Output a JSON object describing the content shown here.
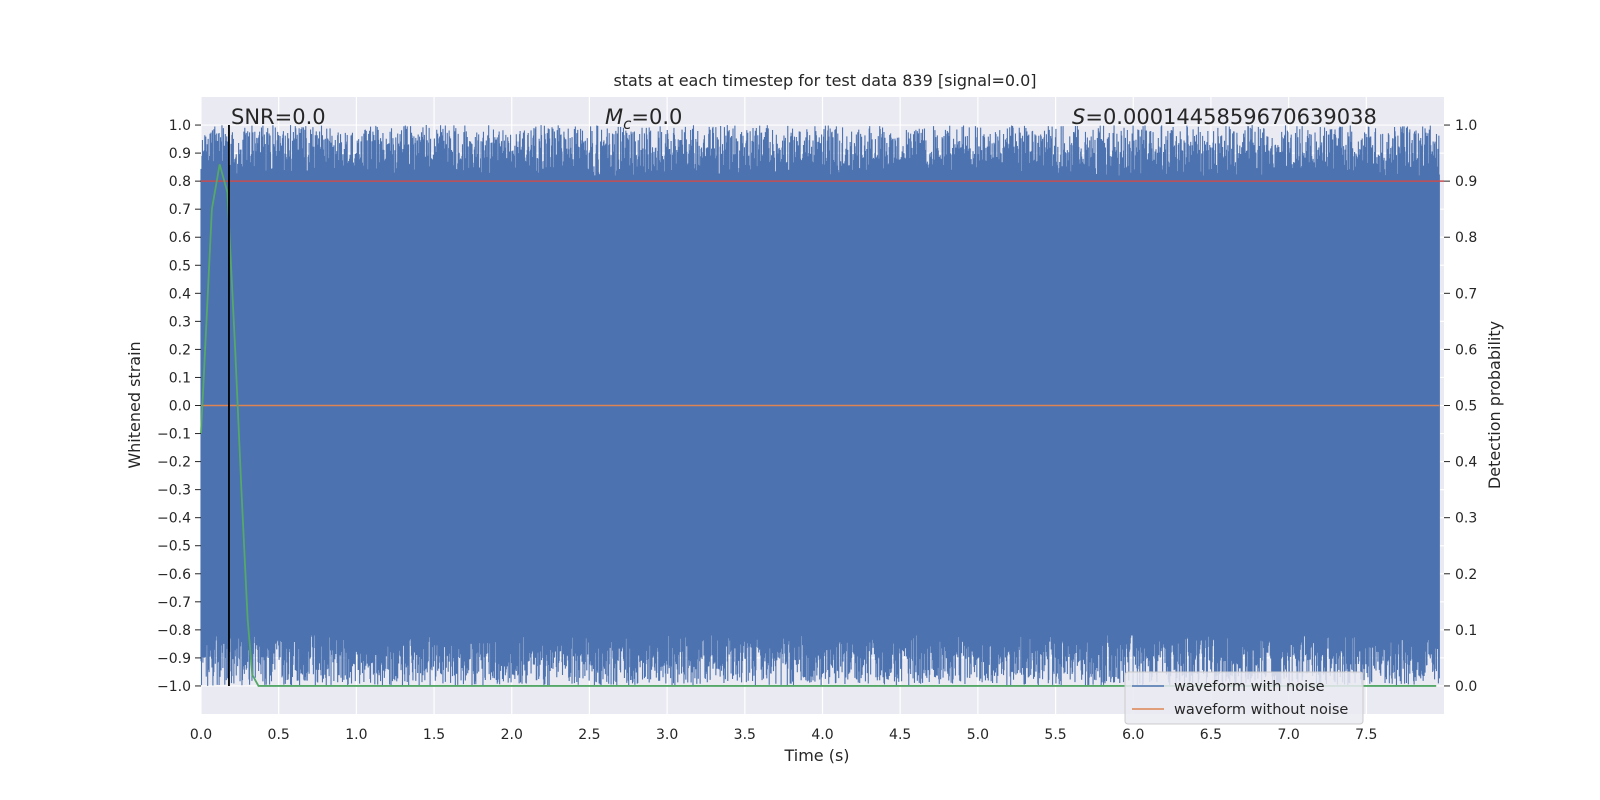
{
  "chart_data": {
    "type": "line",
    "title": "stats at each timestep for test data 839 [signal=0.0]",
    "xlabel": "Time (s)",
    "ylabel_left": "Whitened strain",
    "ylabel_right": "Detection probability",
    "xlim": [
      0.0,
      8.0
    ],
    "ylim_left": [
      -1.1,
      1.1
    ],
    "ylim_right": [
      -0.05,
      1.05
    ],
    "xticks": [
      "0.0",
      "0.5",
      "1.0",
      "1.5",
      "2.0",
      "2.5",
      "3.0",
      "3.5",
      "4.0",
      "4.5",
      "5.0",
      "5.5",
      "6.0",
      "6.5",
      "7.0",
      "7.5"
    ],
    "yticks_left": [
      "1.0",
      "0.9",
      "0.8",
      "0.7",
      "0.6",
      "0.5",
      "0.4",
      "0.3",
      "0.2",
      "0.1",
      "0.0",
      "−0.1",
      "−0.2",
      "−0.3",
      "−0.4",
      "−0.5",
      "−0.6",
      "−0.7",
      "−0.8",
      "−0.9",
      "−1.0"
    ],
    "yticks_right": [
      "1.0",
      "0.9",
      "0.8",
      "0.7",
      "0.6",
      "0.5",
      "0.4",
      "0.3",
      "0.2",
      "0.1",
      "0.0"
    ],
    "grid": true,
    "legend_position": "lower-right",
    "annotations": {
      "snr": "SNR=0.0",
      "mc_symbol": "M",
      "mc_subscript": "c",
      "mc_value": "=0.0",
      "s_symbol": "S",
      "s_value": "=0.0001445859670639038"
    },
    "series": [
      {
        "name": "waveform with noise",
        "axis": "left",
        "color": "#4c72b0",
        "description_range": [
          -1.0,
          1.0
        ],
        "sample_rate_hz": 2048,
        "duration_s": 8.0
      },
      {
        "name": "waveform without noise",
        "axis": "left",
        "color": "#dd8452",
        "values_constant": 0.0
      },
      {
        "axis": "right",
        "color": "#55a868",
        "x": [
          0.0,
          0.03,
          0.07,
          0.12,
          0.17,
          0.22,
          0.26,
          0.3,
          0.33,
          0.37,
          0.45,
          1.0,
          2.0,
          3.0,
          4.0,
          5.0,
          6.0,
          7.0,
          7.95
        ],
        "values": [
          0.45,
          0.62,
          0.85,
          0.93,
          0.88,
          0.6,
          0.35,
          0.12,
          0.02,
          0.0,
          0.0,
          0.0,
          0.0,
          0.0,
          0.0,
          0.0,
          0.0,
          0.0,
          0.0
        ]
      },
      {
        "axis": "right",
        "color": "#c44e52",
        "values_constant": 0.9
      },
      {
        "axis": "left",
        "color": "#000000",
        "vertical_line_x": 0.18
      }
    ]
  }
}
